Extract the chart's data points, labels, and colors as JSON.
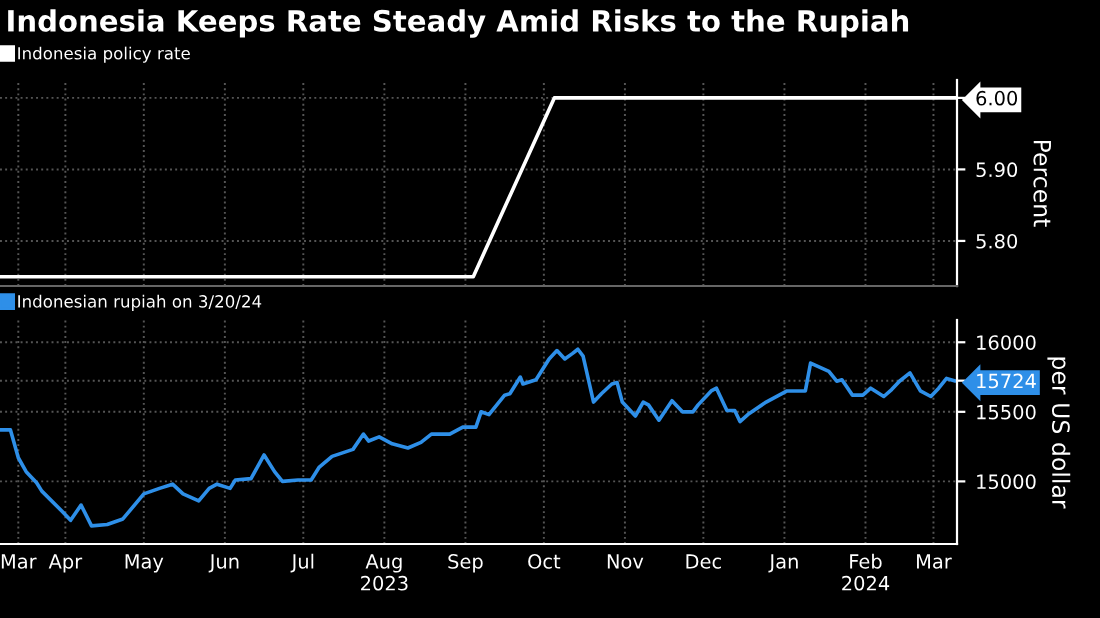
{
  "chart_data": [
    {
      "type": "line",
      "title": "Indonesia Keeps Rate Steady Amid Risks to the Rupiah",
      "ylabel": "Percent",
      "legend": "top left",
      "grid": true,
      "tick_labels": "y",
      "xlim": [
        "2023-03-21",
        "2024-03-21"
      ],
      "ylim": [
        5.737,
        6.025
      ],
      "yticks": [
        {
          "value": 5.8,
          "label": "5.80"
        },
        {
          "value": 5.9,
          "label": "5.90"
        },
        {
          "value": 6.0,
          "label": "6.00"
        }
      ],
      "series": [
        {
          "name": "Indonesia policy rate",
          "color": "#ffffff",
          "x": [
            "2023-03-21",
            "2023-09-18",
            "2023-10-19",
            "2024-03-20"
          ],
          "values": [
            5.75,
            5.75,
            6.0,
            6.0
          ]
        }
      ]
    },
    {
      "type": "line",
      "ylabel": "per US dollar",
      "legend": "top left",
      "grid": true,
      "xlim": [
        "2023-03-21",
        "2024-03-21"
      ],
      "ylim": [
        14550,
        16160
      ],
      "yticks": [
        15000,
        15500,
        16000,
        15724
      ],
      "xticks": [
        {
          "value": "2023-03-28",
          "label": "Mar"
        },
        {
          "value": "2023-04-15",
          "label": "Apr"
        },
        {
          "value": "2023-05-15",
          "label": "May"
        },
        {
          "value": "2023-06-15",
          "label": "Jun"
        },
        {
          "value": "2023-07-15",
          "label": "Jul"
        },
        {
          "value": "2023-08-15",
          "label": "Aug\n2023"
        },
        {
          "value": "2023-09-15",
          "label": "Sep"
        },
        {
          "value": "2023-10-15",
          "label": "Oct"
        },
        {
          "value": "2023-11-15",
          "label": "Nov"
        },
        {
          "value": "2023-12-15",
          "label": "Dec"
        },
        {
          "value": "2024-01-15",
          "label": "Jan"
        },
        {
          "value": "2024-02-15",
          "label": "Feb\n2024"
        },
        {
          "value": "2024-03-12",
          "label": "Mar"
        }
      ],
      "series": [
        {
          "name": "Indonesian rupiah on 3/20/24",
          "color": "#2e8fe8",
          "x": [
            "2023-03-21",
            "2023-03-25",
            "2023-03-28",
            "2023-03-31",
            "2023-04-04",
            "2023-04-06",
            "2023-04-14",
            "2023-04-17",
            "2023-04-21",
            "2023-04-25",
            "2023-05-01",
            "2023-05-07",
            "2023-05-15",
            "2023-05-21",
            "2023-05-26",
            "2023-05-30",
            "2023-06-05",
            "2023-06-09",
            "2023-06-12",
            "2023-06-17",
            "2023-06-19",
            "2023-06-25",
            "2023-06-30",
            "2023-07-04",
            "2023-07-07",
            "2023-07-13",
            "2023-07-18",
            "2023-07-21",
            "2023-07-26",
            "2023-08-03",
            "2023-08-07",
            "2023-08-09",
            "2023-08-13",
            "2023-08-18",
            "2023-08-24",
            "2023-08-29",
            "2023-09-02",
            "2023-09-09",
            "2023-09-14",
            "2023-09-19",
            "2023-09-21",
            "2023-09-24",
            "2023-09-30",
            "2023-10-02",
            "2023-10-06",
            "2023-10-07",
            "2023-10-12",
            "2023-10-17",
            "2023-10-20",
            "2023-10-23",
            "2023-10-26",
            "2023-10-28",
            "2023-10-30",
            "2023-11-03",
            "2023-11-06",
            "2023-11-10",
            "2023-11-12",
            "2023-11-14",
            "2023-11-19",
            "2023-11-22",
            "2023-11-24",
            "2023-11-28",
            "2023-12-03",
            "2023-12-07",
            "2023-12-11",
            "2023-12-13",
            "2023-12-18",
            "2023-12-20",
            "2023-12-24",
            "2023-12-27",
            "2023-12-29",
            "2024-01-01",
            "2024-01-08",
            "2024-01-16",
            "2024-01-23",
            "2024-01-25",
            "2024-02-01",
            "2024-02-04",
            "2024-02-06",
            "2024-02-10",
            "2024-02-14",
            "2024-02-17",
            "2024-02-22",
            "2024-02-25",
            "2024-02-28",
            "2024-03-03",
            "2024-03-07",
            "2024-03-11",
            "2024-03-14",
            "2024-03-17",
            "2024-03-20"
          ],
          "values": [
            15370,
            15370,
            15170,
            15070,
            14990,
            14930,
            14780,
            14720,
            14830,
            14680,
            14690,
            14730,
            14910,
            14950,
            14980,
            14910,
            14860,
            14950,
            14980,
            14950,
            15010,
            15020,
            15190,
            15070,
            15000,
            15010,
            15010,
            15100,
            15180,
            15230,
            15340,
            15290,
            15320,
            15270,
            15240,
            15280,
            15340,
            15340,
            15390,
            15390,
            15500,
            15480,
            15620,
            15630,
            15750,
            15700,
            15730,
            15880,
            15940,
            15880,
            15920,
            15950,
            15900,
            15570,
            15630,
            15700,
            15710,
            15570,
            15470,
            15570,
            15550,
            15440,
            15580,
            15500,
            15500,
            15550,
            15650,
            15670,
            15510,
            15510,
            15430,
            15480,
            15570,
            15650,
            15650,
            15850,
            15790,
            15720,
            15730,
            15620,
            15620,
            15670,
            15610,
            15660,
            15720,
            15780,
            15650,
            15610,
            15670,
            15740,
            15724
          ]
        }
      ]
    }
  ]
}
